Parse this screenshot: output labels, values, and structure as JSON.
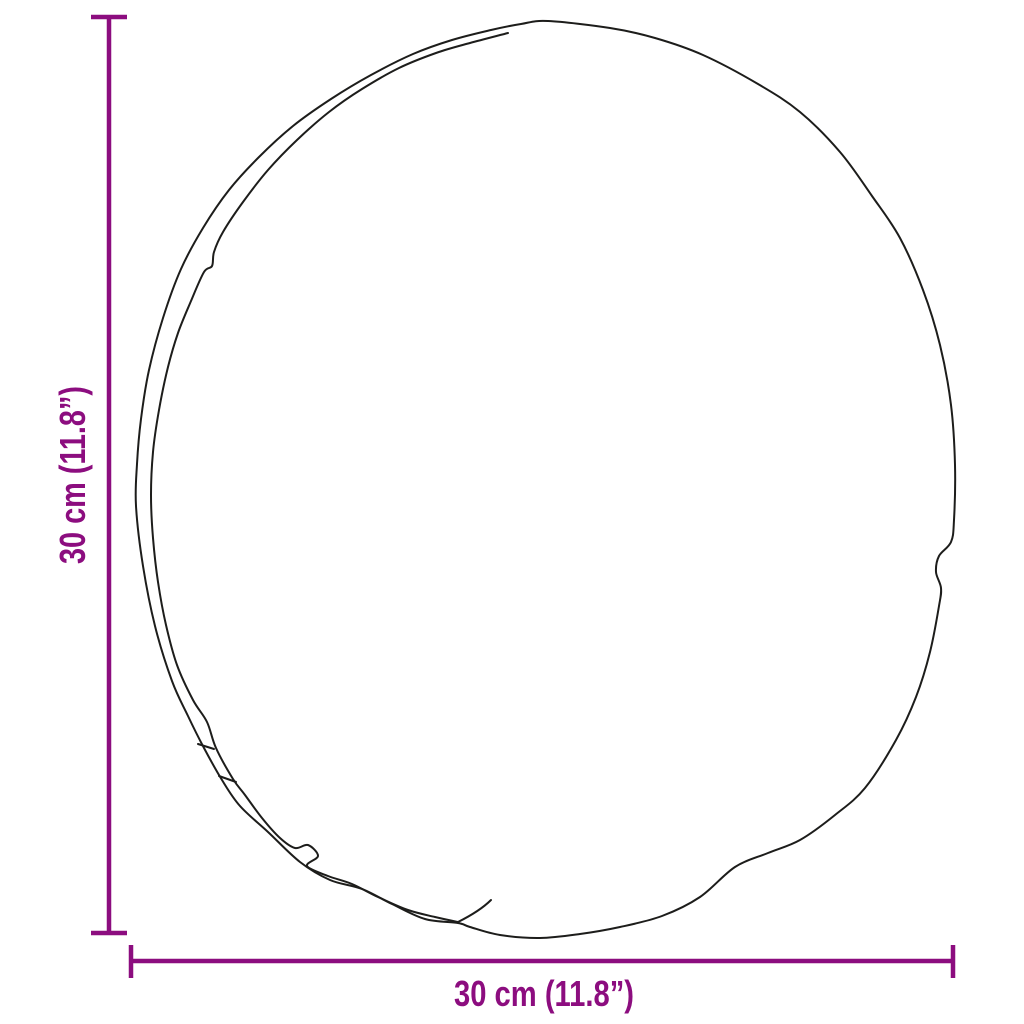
{
  "background_color": "#ffffff",
  "outline": {
    "object_name": "round-cushion-outline",
    "color": "#1d1d1b"
  },
  "dimensions": {
    "color": "#8C0D7F",
    "height_label": "30 cm (11.8”)",
    "width_label": "30 cm (11.8”)"
  }
}
